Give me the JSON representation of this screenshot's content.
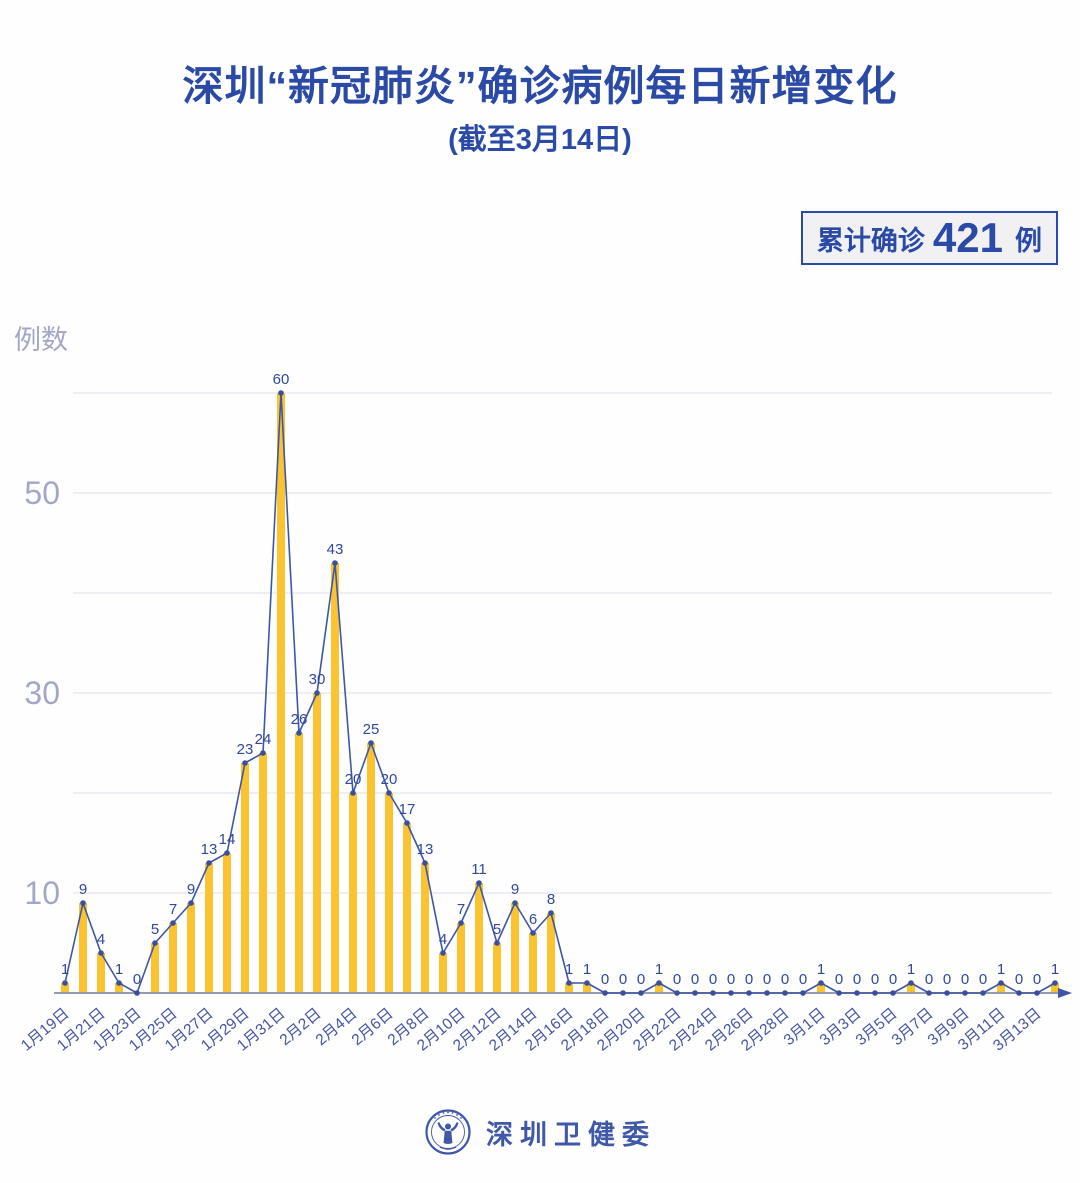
{
  "header": {
    "title": "深圳“新冠肺炎”确诊病例每日新增变化",
    "subtitle": "(截至3月14日)"
  },
  "badge": {
    "prefix": "累计确诊",
    "value": "421",
    "suffix": "例"
  },
  "chart_data": {
    "type": "bar+line",
    "title": "深圳“新冠肺炎”确诊病例每日新增变化",
    "subtitle": "(截至3月14日)",
    "ylabel": "例数",
    "xlabel": "",
    "ylim": [
      0,
      60
    ],
    "grid": "horizontal",
    "gridline_values": [
      10,
      20,
      30,
      40,
      50,
      60
    ],
    "y_tick_labels": [
      "10",
      "30",
      "50"
    ],
    "y_tick_values": [
      10,
      30,
      50
    ],
    "x_tick_every": 2,
    "x_tick_labels": [
      "1月19日",
      "1月21日",
      "1月23日",
      "1月25日",
      "1月27日",
      "1月29日",
      "1月31日",
      "2月2日",
      "2月4日",
      "2月6日",
      "2月8日",
      "2月10日",
      "2月12日",
      "2月14日",
      "2月16日",
      "2月18日",
      "2月20日",
      "2月22日",
      "2月24日",
      "2月26日",
      "2月28日",
      "3月1日",
      "3月3日",
      "3月5日",
      "3月7日",
      "3月9日",
      "3月11日",
      "3月13日"
    ],
    "values": [
      1,
      9,
      4,
      1,
      0,
      5,
      7,
      9,
      13,
      14,
      23,
      24,
      60,
      26,
      30,
      43,
      20,
      25,
      20,
      17,
      13,
      4,
      7,
      11,
      5,
      9,
      6,
      8,
      1,
      1,
      0,
      0,
      0,
      1,
      0,
      0,
      0,
      0,
      0,
      0,
      0,
      0,
      1,
      0,
      0,
      0,
      0,
      1,
      0,
      0,
      0,
      0,
      1,
      0,
      0,
      1
    ],
    "value_labels_visible": true,
    "series_style": "yellow bars with dark-blue line and point markers"
  },
  "colors": {
    "title_blue": "#2b4aa6",
    "bar_yellow": "#fbc32f",
    "line_blue": "#3d56a6",
    "marker_blue": "#3a4f9e",
    "value_label_blue": "#31489c",
    "x_tick_blue": "#46569f",
    "y_tick_gray": "#a2a7c8",
    "gridline_gray": "#e9eaef",
    "axis_gray": "#949cb0",
    "badge_bg": "#f1f1f3"
  },
  "footer": {
    "brand": "深圳卫健委",
    "logo": "shenzhen-health-commission-emblem"
  }
}
